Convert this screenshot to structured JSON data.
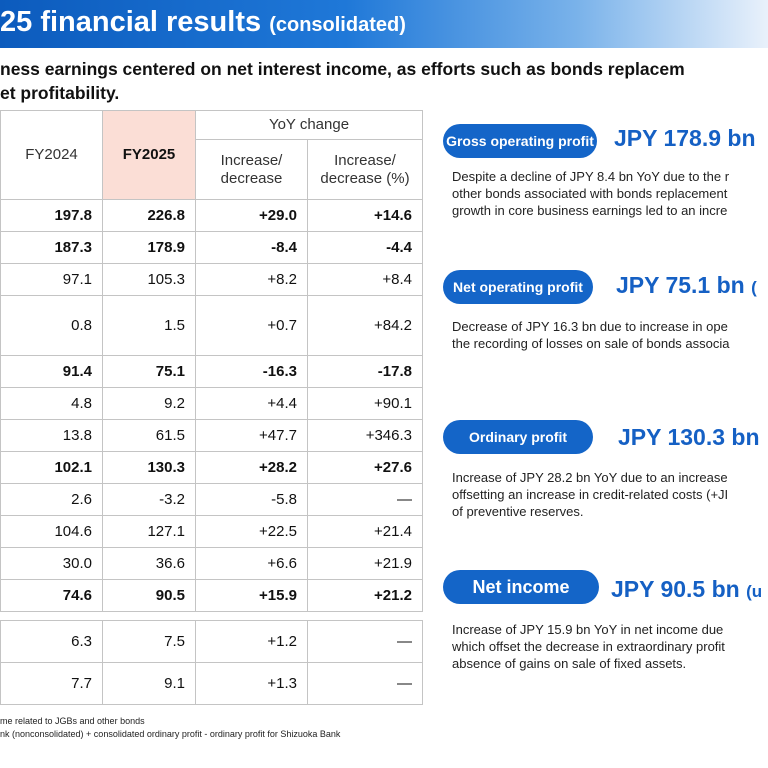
{
  "header": {
    "title": "25 financial results",
    "subtitle": "(consolidated)"
  },
  "lead": {
    "line1": "ness earnings centered on net interest income, as efforts such as bonds replacem",
    "line2": "et profitability."
  },
  "table": {
    "col_fy2024": "FY2024",
    "col_fy2025": "FY2025",
    "yoy_header": "YoY change",
    "col_inc": "Increase/ decrease",
    "col_inc_pct": "Increase/ decrease (%)",
    "rows": [
      {
        "fy2024": "197.8",
        "fy2025": "226.8",
        "inc": "+29.0",
        "pct": "+14.6"
      },
      {
        "fy2024": "187.3",
        "fy2025": "178.9",
        "inc": "-8.4",
        "pct": "-4.4"
      },
      {
        "fy2024": "97.1",
        "fy2025": "105.3",
        "inc": "+8.2",
        "pct": "+8.4"
      },
      {
        "fy2024": "0.8",
        "fy2025": "1.5",
        "inc": "+0.7",
        "pct": "+84.2"
      },
      {
        "fy2024": "91.4",
        "fy2025": "75.1",
        "inc": "-16.3",
        "pct": "-17.8"
      },
      {
        "fy2024": "4.8",
        "fy2025": "9.2",
        "inc": "+4.4",
        "pct": "+90.1"
      },
      {
        "fy2024": "13.8",
        "fy2025": "61.5",
        "inc": "+47.7",
        "pct": "+346.3"
      },
      {
        "fy2024": "102.1",
        "fy2025": "130.3",
        "inc": "+28.2",
        "pct": "+27.6"
      },
      {
        "fy2024": "2.6",
        "fy2025": "-3.2",
        "inc": "-5.8",
        "pct": "―"
      },
      {
        "fy2024": "104.6",
        "fy2025": "127.1",
        "inc": "+22.5",
        "pct": "+21.4"
      },
      {
        "fy2024": "30.0",
        "fy2025": "36.6",
        "inc": "+6.6",
        "pct": "+21.9"
      },
      {
        "fy2024": "74.6",
        "fy2025": "90.5",
        "inc": "+15.9",
        "pct": "+21.2"
      }
    ],
    "rows2": [
      {
        "fy2024": "6.3",
        "fy2025": "7.5",
        "inc": "+1.2",
        "pct": "―"
      },
      {
        "fy2024": "7.7",
        "fy2025": "9.1",
        "inc": "+1.3",
        "pct": "―"
      }
    ]
  },
  "footnotes": {
    "line1": "me related to JGBs and other bonds",
    "line2": "nk (nonconsolidated) + consolidated ordinary profit - ordinary profit for Shizuoka Bank"
  },
  "cards": [
    {
      "label": "Gross operating profit",
      "value": "JPY 178.9 bn",
      "desc": [
        "Despite a decline of JPY 8.4 bn YoY due to the r",
        "other bonds associated with bonds replacement",
        "growth in core business earnings led to an incre"
      ]
    },
    {
      "label": "Net operating profit",
      "value": "JPY 75.1 bn",
      "suffix": "(",
      "desc": [
        "Decrease of JPY 16.3 bn due to increase in ope",
        "the recording of losses on sale of bonds associa"
      ]
    },
    {
      "label": "Ordinary profit",
      "value": "JPY 130.3 bn",
      "desc": [
        "Increase of JPY 28.2 bn YoY due to an increase",
        "offsetting an increase in credit-related costs (+JI",
        "of preventive reserves."
      ]
    },
    {
      "label": "Net income",
      "value": "JPY 90.5 bn",
      "suffix": "(u",
      "desc": [
        "Increase of JPY 15.9 bn YoY in net income due",
        "which offset the decrease in extraordinary profit",
        "absence of gains on sale of fixed assets."
      ]
    }
  ]
}
